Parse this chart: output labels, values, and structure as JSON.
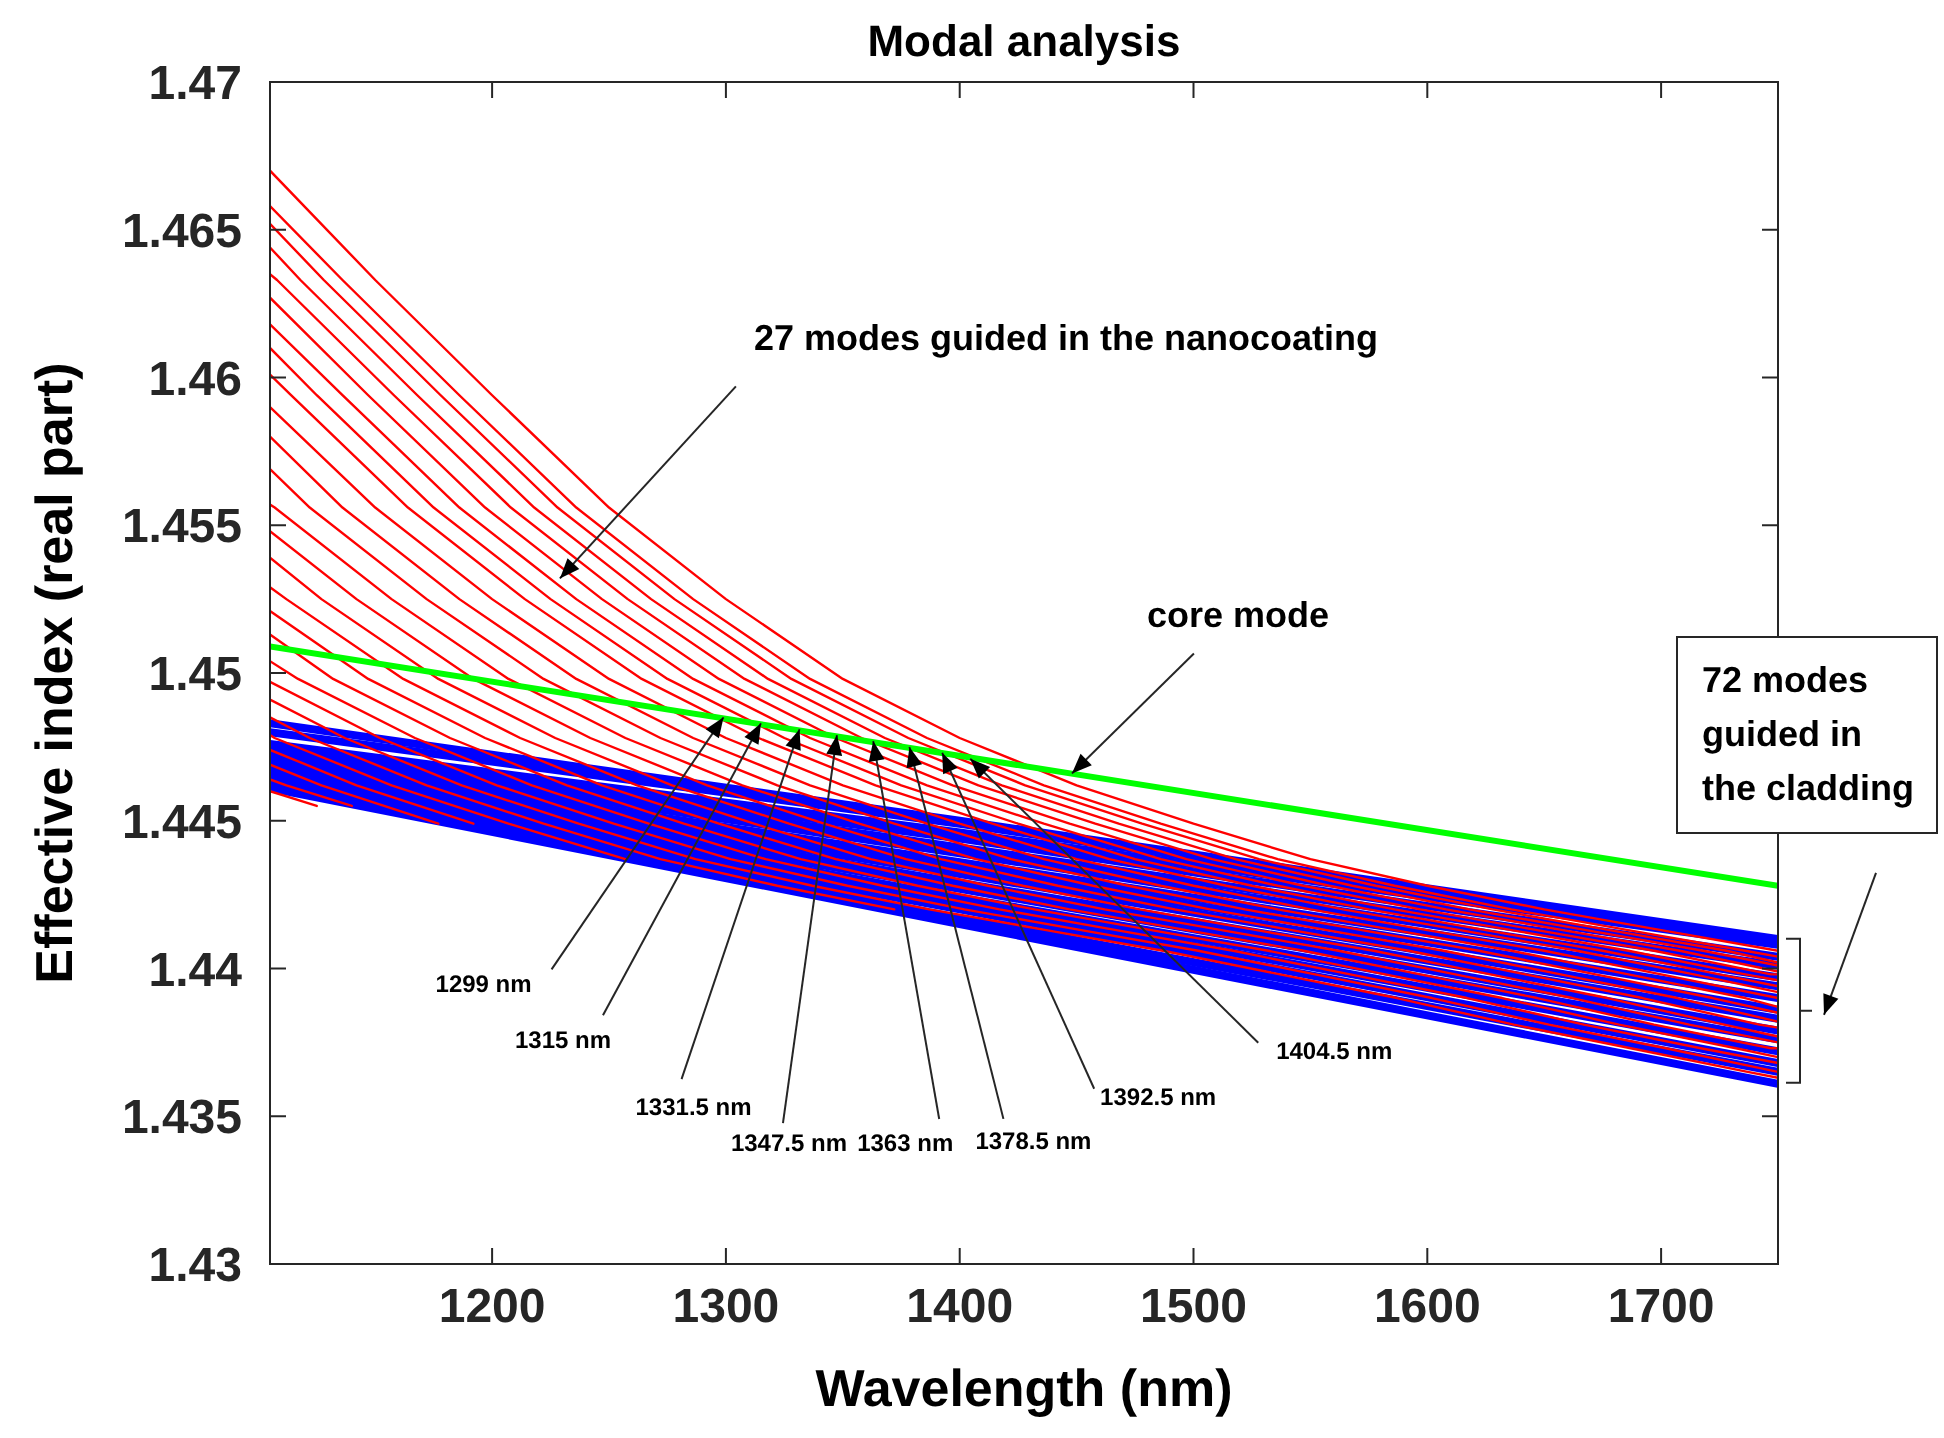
{
  "chart_data": {
    "type": "line",
    "title": "Modal analysis",
    "xlabel": "Wavelength (nm)",
    "ylabel": "Effective index (real part)",
    "xlim": [
      1105,
      1750
    ],
    "xticks": [
      1200,
      1300,
      1400,
      1500,
      1600,
      1700
    ],
    "ylim": [
      1.43,
      1.47
    ],
    "yticks": [
      1.43,
      1.435,
      1.44,
      1.445,
      1.45,
      1.455,
      1.46,
      1.465,
      1.47
    ],
    "grid": false,
    "marker": "none",
    "line_style": "solid",
    "series": [
      {
        "color": "#0000ff",
        "x": [
          1105,
          1400,
          1750
        ],
        "values": [
          1.4483,
          1.445,
          1.441
        ]
      },
      {
        "color": "#0000ff",
        "x": [
          1105,
          1400,
          1750
        ],
        "values": [
          1.448,
          1.4449,
          1.4409
        ]
      },
      {
        "color": "#0000ff",
        "x": [
          1105,
          1400,
          1750
        ],
        "values": [
          1.4476,
          1.4446,
          1.4408
        ]
      },
      {
        "color": "#0000ff",
        "x": [
          1105,
          1400,
          1750
        ],
        "values": [
          1.4475,
          1.4444,
          1.4404
        ]
      },
      {
        "color": "#0000ff",
        "x": [
          1105,
          1400,
          1750
        ],
        "values": [
          1.4474,
          1.4441,
          1.4401
        ]
      },
      {
        "color": "#0000ff",
        "x": [
          1105,
          1400,
          1750
        ],
        "values": [
          1.4473,
          1.4439,
          1.4397
        ]
      },
      {
        "color": "#0000ff",
        "x": [
          1105,
          1400,
          1750
        ],
        "values": [
          1.4471,
          1.4436,
          1.4394
        ]
      },
      {
        "color": "#0000ff",
        "x": [
          1105,
          1400,
          1750
        ],
        "values": [
          1.447,
          1.4434,
          1.439
        ]
      },
      {
        "color": "#0000ff",
        "x": [
          1105,
          1400,
          1750
        ],
        "values": [
          1.4469,
          1.4432,
          1.4386
        ]
      },
      {
        "color": "#0000ff",
        "x": [
          1105,
          1400,
          1750
        ],
        "values": [
          1.4468,
          1.4429,
          1.4383
        ]
      },
      {
        "color": "#0000ff",
        "x": [
          1105,
          1400,
          1750
        ],
        "values": [
          1.4467,
          1.4427,
          1.4379
        ]
      },
      {
        "color": "#0000ff",
        "x": [
          1105,
          1400,
          1750
        ],
        "values": [
          1.4466,
          1.4424,
          1.4376
        ]
      },
      {
        "color": "#0000ff",
        "x": [
          1105,
          1400,
          1750
        ],
        "values": [
          1.4464,
          1.4422,
          1.4372
        ]
      },
      {
        "color": "#0000ff",
        "x": [
          1105,
          1400,
          1750
        ],
        "values": [
          1.4463,
          1.442,
          1.4368
        ]
      },
      {
        "color": "#0000ff",
        "x": [
          1105,
          1400,
          1750
        ],
        "values": [
          1.4462,
          1.4417,
          1.4365
        ]
      },
      {
        "color": "#0000ff",
        "x": [
          1105,
          1400,
          1750
        ],
        "values": [
          1.4461,
          1.4415,
          1.4361
        ]
      },
      {
        "color": "#ff0000",
        "x": [
          1105,
          1150,
          1200,
          1250,
          1300,
          1350,
          1400,
          1450,
          1500,
          1550,
          1600,
          1650,
          1700,
          1750
        ],
        "values": [
          1.467,
          1.4633,
          1.4594,
          1.4556,
          1.4525,
          1.4498,
          1.4478,
          1.4462,
          1.4449,
          1.4437,
          1.4428,
          1.442,
          1.4413,
          1.4406
        ]
      },
      {
        "color": "#ff0000",
        "x": [
          1105,
          1136,
          1186,
          1236,
          1286,
          1336,
          1386,
          1436,
          1486,
          1536,
          1586,
          1636,
          1686,
          1736,
          1750
        ],
        "values": [
          1.4658,
          1.4633,
          1.4594,
          1.4556,
          1.4525,
          1.4498,
          1.4478,
          1.4462,
          1.4449,
          1.4437,
          1.4428,
          1.442,
          1.4413,
          1.4406,
          1.4404
        ]
      },
      {
        "color": "#ff0000",
        "x": [
          1105,
          1128,
          1178,
          1228,
          1278,
          1328,
          1378,
          1428,
          1478,
          1528,
          1578,
          1628,
          1678,
          1728,
          1750
        ],
        "values": [
          1.4652,
          1.4633,
          1.4594,
          1.4556,
          1.4525,
          1.4498,
          1.4478,
          1.4462,
          1.4449,
          1.4437,
          1.4428,
          1.442,
          1.4413,
          1.4406,
          1.4402
        ]
      },
      {
        "color": "#ff0000",
        "x": [
          1105,
          1118,
          1168,
          1218,
          1268,
          1318,
          1368,
          1418,
          1468,
          1518,
          1568,
          1618,
          1668,
          1718,
          1750
        ],
        "values": [
          1.4644,
          1.4633,
          1.4594,
          1.4556,
          1.4525,
          1.4498,
          1.4478,
          1.4462,
          1.4449,
          1.4437,
          1.4428,
          1.442,
          1.4413,
          1.4406,
          1.4401
        ]
      },
      {
        "color": "#ff0000",
        "x": [
          1105,
          1108,
          1158,
          1208,
          1258,
          1308,
          1358,
          1408,
          1458,
          1508,
          1558,
          1608,
          1658,
          1708,
          1750
        ],
        "values": [
          1.4635,
          1.4633,
          1.4594,
          1.4556,
          1.4525,
          1.4498,
          1.4478,
          1.4462,
          1.4449,
          1.4437,
          1.4428,
          1.442,
          1.4413,
          1.4406,
          1.4399
        ]
      },
      {
        "color": "#ff0000",
        "x": [
          1105,
          1147,
          1197,
          1247,
          1297,
          1347,
          1397,
          1447,
          1497,
          1547,
          1597,
          1647,
          1697,
          1747,
          1750
        ],
        "values": [
          1.4627,
          1.4594,
          1.4556,
          1.4525,
          1.4498,
          1.4478,
          1.4462,
          1.4449,
          1.4437,
          1.4428,
          1.442,
          1.4413,
          1.4406,
          1.4398,
          1.4398
        ]
      },
      {
        "color": "#ff0000",
        "x": [
          1105,
          1136,
          1186,
          1236,
          1286,
          1336,
          1386,
          1436,
          1486,
          1536,
          1586,
          1636,
          1686,
          1736,
          1750
        ],
        "values": [
          1.4618,
          1.4594,
          1.4556,
          1.4525,
          1.4498,
          1.4478,
          1.4462,
          1.4449,
          1.4437,
          1.4428,
          1.442,
          1.4413,
          1.4406,
          1.4398,
          1.4396
        ]
      },
      {
        "color": "#ff0000",
        "x": [
          1105,
          1125,
          1175,
          1225,
          1275,
          1325,
          1375,
          1425,
          1475,
          1525,
          1575,
          1625,
          1675,
          1725,
          1750
        ],
        "values": [
          1.461,
          1.4594,
          1.4556,
          1.4525,
          1.4498,
          1.4478,
          1.4462,
          1.4449,
          1.4437,
          1.4428,
          1.442,
          1.4413,
          1.4406,
          1.4398,
          1.4394
        ]
      },
      {
        "color": "#ff0000",
        "x": [
          1105,
          1114,
          1164,
          1214,
          1264,
          1314,
          1364,
          1414,
          1464,
          1514,
          1564,
          1614,
          1664,
          1714,
          1750
        ],
        "values": [
          1.4601,
          1.4594,
          1.4556,
          1.4525,
          1.4498,
          1.4478,
          1.4462,
          1.4449,
          1.4437,
          1.4428,
          1.442,
          1.4413,
          1.4406,
          1.4398,
          1.4392
        ]
      },
      {
        "color": "#ff0000",
        "x": [
          1105,
          1150,
          1200,
          1250,
          1300,
          1350,
          1400,
          1450,
          1500,
          1550,
          1600,
          1650,
          1700,
          1750
        ],
        "values": [
          1.459,
          1.4556,
          1.4525,
          1.4498,
          1.4478,
          1.4462,
          1.4449,
          1.4437,
          1.4428,
          1.442,
          1.4413,
          1.4406,
          1.4398,
          1.439
        ]
      },
      {
        "color": "#ff0000",
        "x": [
          1105,
          1136,
          1186,
          1236,
          1286,
          1336,
          1386,
          1436,
          1486,
          1536,
          1586,
          1636,
          1686,
          1736,
          1750
        ],
        "values": [
          1.458,
          1.4556,
          1.4525,
          1.4498,
          1.4478,
          1.4462,
          1.4449,
          1.4437,
          1.4428,
          1.442,
          1.4413,
          1.4406,
          1.4398,
          1.439,
          1.4387
        ]
      },
      {
        "color": "#ff0000",
        "x": [
          1105,
          1122,
          1172,
          1222,
          1272,
          1322,
          1372,
          1422,
          1472,
          1522,
          1572,
          1622,
          1672,
          1722,
          1750
        ],
        "values": [
          1.4569,
          1.4556,
          1.4525,
          1.4498,
          1.4478,
          1.4462,
          1.4449,
          1.4437,
          1.4428,
          1.442,
          1.4413,
          1.4406,
          1.4398,
          1.439,
          1.4385
        ]
      },
      {
        "color": "#ff0000",
        "x": [
          1105,
          1107,
          1157,
          1207,
          1257,
          1307,
          1357,
          1407,
          1457,
          1507,
          1557,
          1607,
          1657,
          1707,
          1750
        ],
        "values": [
          1.4557,
          1.4556,
          1.4525,
          1.4498,
          1.4478,
          1.4462,
          1.4449,
          1.4437,
          1.4428,
          1.442,
          1.4413,
          1.4406,
          1.4398,
          1.439,
          1.4382
        ]
      },
      {
        "color": "#ff0000",
        "x": [
          1105,
          1142,
          1192,
          1242,
          1292,
          1342,
          1392,
          1442,
          1492,
          1542,
          1592,
          1642,
          1692,
          1742,
          1750
        ],
        "values": [
          1.4548,
          1.4525,
          1.4498,
          1.4478,
          1.4462,
          1.4449,
          1.4437,
          1.4428,
          1.442,
          1.4413,
          1.4406,
          1.4398,
          1.439,
          1.4381,
          1.438
        ]
      },
      {
        "color": "#ff0000",
        "x": [
          1105,
          1127,
          1177,
          1227,
          1277,
          1327,
          1377,
          1427,
          1477,
          1527,
          1577,
          1627,
          1677,
          1727,
          1750
        ],
        "values": [
          1.4539,
          1.4525,
          1.4498,
          1.4478,
          1.4462,
          1.4449,
          1.4437,
          1.4428,
          1.442,
          1.4413,
          1.4406,
          1.4398,
          1.439,
          1.4381,
          1.4377
        ]
      },
      {
        "color": "#ff0000",
        "x": [
          1105,
          1112,
          1162,
          1212,
          1262,
          1312,
          1362,
          1412,
          1462,
          1512,
          1562,
          1612,
          1662,
          1712,
          1750
        ],
        "values": [
          1.4529,
          1.4525,
          1.4498,
          1.4478,
          1.4462,
          1.4449,
          1.4437,
          1.4428,
          1.442,
          1.4413,
          1.4406,
          1.4398,
          1.439,
          1.4381,
          1.4375
        ]
      },
      {
        "color": "#ff0000",
        "x": [
          1105,
          1147,
          1197,
          1247,
          1297,
          1347,
          1397,
          1447,
          1497,
          1547,
          1597,
          1647,
          1697,
          1747,
          1750
        ],
        "values": [
          1.4521,
          1.4498,
          1.4478,
          1.4462,
          1.4449,
          1.4437,
          1.4428,
          1.442,
          1.4413,
          1.4406,
          1.4398,
          1.439,
          1.4381,
          1.4373,
          1.4373
        ]
      },
      {
        "color": "#ff0000",
        "x": [
          1105,
          1132,
          1182,
          1232,
          1282,
          1332,
          1382,
          1432,
          1482,
          1532,
          1582,
          1632,
          1682,
          1732,
          1750
        ],
        "values": [
          1.4513,
          1.4498,
          1.4478,
          1.4462,
          1.4449,
          1.4437,
          1.4428,
          1.442,
          1.4413,
          1.4406,
          1.4398,
          1.439,
          1.4381,
          1.4373,
          1.437
        ]
      },
      {
        "color": "#ff0000",
        "x": [
          1105,
          1117,
          1167,
          1217,
          1267,
          1317,
          1367,
          1417,
          1467,
          1517,
          1567,
          1617,
          1667,
          1717,
          1750
        ],
        "values": [
          1.4504,
          1.4498,
          1.4478,
          1.4462,
          1.4449,
          1.4437,
          1.4428,
          1.442,
          1.4413,
          1.4406,
          1.4398,
          1.439,
          1.4381,
          1.4373,
          1.4368
        ]
      },
      {
        "color": "#ff0000",
        "x": [
          1105,
          1152,
          1202,
          1252,
          1302,
          1352,
          1402,
          1452,
          1502,
          1552,
          1602,
          1652,
          1702,
          1750
        ],
        "values": [
          1.4497,
          1.4478,
          1.4462,
          1.4449,
          1.4437,
          1.4428,
          1.442,
          1.4413,
          1.4406,
          1.4398,
          1.439,
          1.4381,
          1.4373,
          1.4365
        ]
      },
      {
        "color": "#ff0000",
        "x": [
          1105,
          1137,
          1187,
          1237,
          1287,
          1337,
          1387,
          1437,
          1487,
          1537,
          1587,
          1637,
          1687,
          1737,
          1750
        ],
        "values": [
          1.4491,
          1.4478,
          1.4462,
          1.4449,
          1.4437,
          1.4428,
          1.442,
          1.4413,
          1.4406,
          1.4398,
          1.439,
          1.4381,
          1.4373,
          1.4365,
          1.4363
        ]
      },
      {
        "color": "#ff0000",
        "x": [
          1105,
          1122,
          1172,
          1222,
          1272,
          1322,
          1372
        ],
        "values": [
          1.4485,
          1.4478,
          1.4462,
          1.4449,
          1.4437,
          1.4428,
          1.442
        ]
      },
      {
        "color": "#ff0000",
        "x": [
          1105,
          1107,
          1157,
          1207,
          1257
        ],
        "values": [
          1.4479,
          1.4478,
          1.4462,
          1.4449,
          1.4437
        ]
      },
      {
        "color": "#ff0000",
        "x": [
          1105,
          1142,
          1192
        ],
        "values": [
          1.4474,
          1.4462,
          1.4449
        ]
      },
      {
        "color": "#ff0000",
        "x": [
          1105,
          1127,
          1177
        ],
        "values": [
          1.4469,
          1.4462,
          1.4449
        ]
      },
      {
        "color": "#ff0000",
        "x": [
          1105,
          1112,
          1140
        ],
        "values": [
          1.4464,
          1.4462,
          1.4455
        ]
      },
      {
        "color": "#ff0000",
        "x": [
          1105,
          1125
        ],
        "values": [
          1.446,
          1.4455
        ]
      },
      {
        "color": "#00ff00",
        "x": [
          1105,
          1750
        ],
        "values": [
          1.4509,
          1.4428
        ]
      }
    ],
    "annotations": [
      {
        "text": "27 modes guided in the nanocoating",
        "x": 1229,
        "y": 1.4532
      },
      {
        "text": "core mode",
        "x": 1448,
        "y": 1.4466
      },
      "72 modes guided in the cladding",
      {
        "text": "1299 nm",
        "x": 1299,
        "y": 1.4485
      },
      {
        "text": "1315 nm",
        "x": 1315,
        "y": 1.4483
      },
      {
        "text": "1331.5 nm",
        "x": 1331.5,
        "y": 1.4481
      },
      {
        "text": "1347.5 nm",
        "x": 1347.5,
        "y": 1.4479
      },
      {
        "text": "1363 nm",
        "x": 1363,
        "y": 1.4477
      },
      {
        "text": "1378.5 nm",
        "x": 1378.5,
        "y": 1.4475
      },
      {
        "text": "1392.5 nm",
        "x": 1392.5,
        "y": 1.4473
      },
      {
        "text": "1404.5 nm",
        "x": 1404.5,
        "y": 1.4471
      }
    ]
  }
}
